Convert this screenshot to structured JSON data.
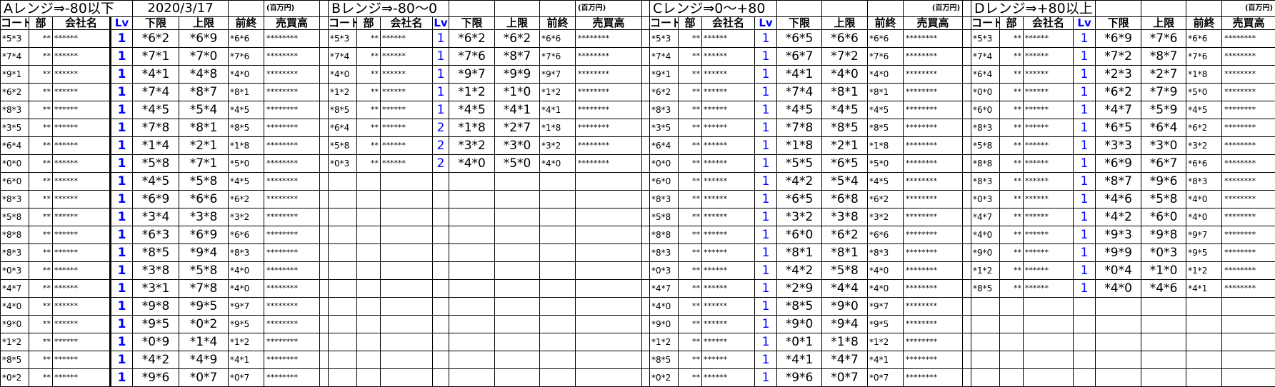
{
  "date": "2020/3/17",
  "unit_label": "(百万円)",
  "headers": [
    "コード",
    "部",
    "会社名",
    "Lv",
    "下限",
    "上限",
    "前終",
    "売買高"
  ],
  "text_color_lv": "#0000FF",
  "sections": [
    {
      "title": "Aレンジ⇒-80以下",
      "rows": [
        [
          "*5*3",
          "**",
          "******",
          "1",
          "*6*2",
          "*6*9",
          "*6*6",
          "********"
        ],
        [
          "*7*4",
          "**",
          "******",
          "1",
          "*7*1",
          "*7*0",
          "*7*6",
          "********"
        ],
        [
          "*9*1",
          "**",
          "******",
          "1",
          "*4*1",
          "*4*8",
          "*4*0",
          "********"
        ],
        [
          "*6*2",
          "**",
          "******",
          "1",
          "*7*4",
          "*8*7",
          "*8*1",
          "********"
        ],
        [
          "*8*3",
          "**",
          "******",
          "1",
          "*4*5",
          "*5*4",
          "*4*5",
          "********"
        ],
        [
          "*3*5",
          "**",
          "******",
          "1",
          "*7*8",
          "*8*1",
          "*8*5",
          "********"
        ],
        [
          "*6*4",
          "**",
          "******",
          "1",
          "*1*4",
          "*2*1",
          "*1*8",
          "********"
        ],
        [
          "*0*0",
          "**",
          "******",
          "1",
          "*5*8",
          "*7*1",
          "*5*0",
          "********"
        ],
        [
          "*6*0",
          "**",
          "******",
          "1",
          "*4*5",
          "*5*8",
          "*4*5",
          "********"
        ],
        [
          "*8*3",
          "**",
          "******",
          "1",
          "*6*9",
          "*6*6",
          "*6*2",
          "********"
        ],
        [
          "*5*8",
          "**",
          "******",
          "1",
          "*3*4",
          "*3*8",
          "*3*2",
          "********"
        ],
        [
          "*8*8",
          "**",
          "******",
          "1",
          "*6*3",
          "*6*9",
          "*6*6",
          "********"
        ],
        [
          "*8*3",
          "**",
          "******",
          "1",
          "*8*5",
          "*9*4",
          "*8*3",
          "********"
        ],
        [
          "*0*3",
          "**",
          "******",
          "1",
          "*3*8",
          "*5*8",
          "*4*0",
          "********"
        ],
        [
          "*4*7",
          "**",
          "******",
          "1",
          "*3*1",
          "*7*8",
          "*4*0",
          "********"
        ],
        [
          "*4*0",
          "**",
          "******",
          "1",
          "*9*8",
          "*9*5",
          "*9*7",
          "********"
        ],
        [
          "*9*0",
          "**",
          "******",
          "1",
          "*9*5",
          "*0*2",
          "*9*5",
          "********"
        ],
        [
          "*1*2",
          "**",
          "******",
          "1",
          "*0*9",
          "*1*4",
          "*1*2",
          "********"
        ],
        [
          "*8*5",
          "**",
          "******",
          "1",
          "*4*2",
          "*4*9",
          "*4*1",
          "********"
        ],
        [
          "*0*2",
          "**",
          "******",
          "1",
          "*9*6",
          "*0*7",
          "*0*7",
          "********"
        ]
      ]
    },
    {
      "title": "Bレンジ⇒-80〜0",
      "rows": [
        [
          "*5*3",
          "**",
          "******",
          "1",
          "*6*2",
          "*6*2",
          "*6*6",
          "********"
        ],
        [
          "*7*4",
          "**",
          "******",
          "1",
          "*7*6",
          "*8*7",
          "*7*6",
          "********"
        ],
        [
          "*4*0",
          "**",
          "******",
          "1",
          "*9*7",
          "*9*9",
          "*9*7",
          "********"
        ],
        [
          "*1*2",
          "**",
          "******",
          "1",
          "*1*2",
          "*1*0",
          "*1*2",
          "********"
        ],
        [
          "*8*5",
          "**",
          "******",
          "1",
          "*4*5",
          "*4*1",
          "*4*1",
          "********"
        ],
        [
          "*6*4",
          "**",
          "******",
          "2",
          "*1*8",
          "*2*7",
          "*1*8",
          "********"
        ],
        [
          "*5*8",
          "**",
          "******",
          "2",
          "*3*2",
          "*3*0",
          "*3*2",
          "********"
        ],
        [
          "*0*3",
          "**",
          "******",
          "2",
          "*4*0",
          "*5*0",
          "*4*0",
          "********"
        ]
      ]
    },
    {
      "title": "Cレンジ⇒0〜+80",
      "rows": [
        [
          "*5*3",
          "**",
          "******",
          "1",
          "*6*5",
          "*6*6",
          "*6*6",
          "********"
        ],
        [
          "*7*4",
          "**",
          "******",
          "1",
          "*6*7",
          "*7*2",
          "*7*6",
          "********"
        ],
        [
          "*9*1",
          "**",
          "******",
          "1",
          "*4*1",
          "*4*0",
          "*4*0",
          "********"
        ],
        [
          "*6*2",
          "**",
          "******",
          "1",
          "*7*4",
          "*8*1",
          "*8*1",
          "********"
        ],
        [
          "*8*3",
          "**",
          "******",
          "1",
          "*4*5",
          "*4*5",
          "*4*5",
          "********"
        ],
        [
          "*3*5",
          "**",
          "******",
          "1",
          "*7*8",
          "*8*5",
          "*8*5",
          "********"
        ],
        [
          "*6*4",
          "**",
          "******",
          "1",
          "*1*8",
          "*2*1",
          "*1*8",
          "********"
        ],
        [
          "*0*0",
          "**",
          "******",
          "1",
          "*5*5",
          "*6*5",
          "*5*0",
          "********"
        ],
        [
          "*6*0",
          "**",
          "******",
          "1",
          "*4*2",
          "*5*4",
          "*4*5",
          "********"
        ],
        [
          "*8*3",
          "**",
          "******",
          "1",
          "*6*5",
          "*6*8",
          "*6*2",
          "********"
        ],
        [
          "*5*8",
          "**",
          "******",
          "1",
          "*3*2",
          "*3*8",
          "*3*2",
          "********"
        ],
        [
          "*8*8",
          "**",
          "******",
          "1",
          "*6*0",
          "*6*2",
          "*6*6",
          "********"
        ],
        [
          "*8*3",
          "**",
          "******",
          "1",
          "*8*1",
          "*8*1",
          "*8*3",
          "********"
        ],
        [
          "*0*3",
          "**",
          "******",
          "1",
          "*4*2",
          "*5*8",
          "*4*0",
          "********"
        ],
        [
          "*4*7",
          "**",
          "******",
          "1",
          "*2*9",
          "*4*4",
          "*4*0",
          "********"
        ],
        [
          "*4*0",
          "**",
          "******",
          "1",
          "*8*5",
          "*9*0",
          "*9*7",
          "********"
        ],
        [
          "*9*0",
          "**",
          "******",
          "1",
          "*9*0",
          "*9*4",
          "*9*5",
          "********"
        ],
        [
          "*1*2",
          "**",
          "******",
          "1",
          "*0*1",
          "*1*8",
          "*1*2",
          "********"
        ],
        [
          "*8*5",
          "**",
          "******",
          "1",
          "*4*1",
          "*4*7",
          "*4*1",
          "********"
        ],
        [
          "*0*2",
          "**",
          "******",
          "1",
          "*9*6",
          "*0*7",
          "*0*7",
          "********"
        ]
      ]
    },
    {
      "title": "Dレンジ⇒+80以上",
      "rows": [
        [
          "*5*3",
          "**",
          "******",
          "1",
          "*6*9",
          "*7*6",
          "*6*6",
          "********"
        ],
        [
          "*7*4",
          "**",
          "******",
          "1",
          "*7*2",
          "*8*7",
          "*7*6",
          "********"
        ],
        [
          "*6*4",
          "**",
          "******",
          "1",
          "*2*3",
          "*2*7",
          "*1*8",
          "********"
        ],
        [
          "*0*0",
          "**",
          "******",
          "1",
          "*6*2",
          "*7*9",
          "*5*0",
          "********"
        ],
        [
          "*6*0",
          "**",
          "******",
          "1",
          "*4*7",
          "*5*9",
          "*4*5",
          "********"
        ],
        [
          "*8*3",
          "**",
          "******",
          "1",
          "*6*5",
          "*6*4",
          "*6*2",
          "********"
        ],
        [
          "*5*8",
          "**",
          "******",
          "1",
          "*3*3",
          "*3*0",
          "*3*2",
          "********"
        ],
        [
          "*8*8",
          "**",
          "******",
          "1",
          "*6*9",
          "*6*7",
          "*6*6",
          "********"
        ],
        [
          "*8*3",
          "**",
          "******",
          "1",
          "*8*7",
          "*9*6",
          "*8*3",
          "********"
        ],
        [
          "*0*3",
          "**",
          "******",
          "1",
          "*4*6",
          "*5*8",
          "*4*0",
          "********"
        ],
        [
          "*4*7",
          "**",
          "******",
          "1",
          "*4*2",
          "*6*0",
          "*4*0",
          "********"
        ],
        [
          "*4*0",
          "**",
          "******",
          "1",
          "*9*3",
          "*9*8",
          "*9*7",
          "********"
        ],
        [
          "*9*0",
          "**",
          "******",
          "1",
          "*9*9",
          "*0*3",
          "*9*5",
          "********"
        ],
        [
          "*1*2",
          "**",
          "******",
          "1",
          "*0*4",
          "*1*0",
          "*1*2",
          "********"
        ],
        [
          "*8*5",
          "**",
          "******",
          "1",
          "*4*0",
          "*4*6",
          "*4*1",
          "********"
        ]
      ]
    }
  ]
}
